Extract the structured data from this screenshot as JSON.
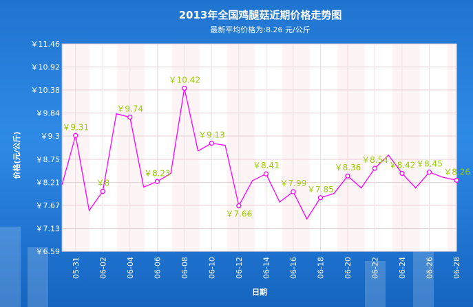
{
  "chart_data": {
    "type": "line",
    "title": "2013年全国鸡腿菇近期价格走势图",
    "subtitle": "最新平均价格为:8.26 元/公斤",
    "xlabel": "日期",
    "ylabel": "价格(元/公斤)",
    "ylim": [
      6.59,
      11.46
    ],
    "yticks": [
      "￥11.46",
      "￥10.92",
      "￥10.38",
      "￥9.84",
      "￥9.3",
      "￥8.75",
      "￥8.21",
      "￥7.67",
      "￥7.13",
      "￥6.59"
    ],
    "ytick_values": [
      11.46,
      10.92,
      10.38,
      9.84,
      9.3,
      8.75,
      8.21,
      7.67,
      7.13,
      6.59
    ],
    "xticks": [
      "05-31",
      "06-02",
      "06-04",
      "06-06",
      "06-08",
      "06-10",
      "06-12",
      "06-14",
      "06-16",
      "06-18",
      "06-20",
      "06-22",
      "06-24",
      "06-26",
      "06-28"
    ],
    "series": [
      {
        "color": "#ff00ff",
        "points": [
          {
            "x": "05-30",
            "y": 8.15
          },
          {
            "x": "05-31",
            "y": 9.31,
            "label": "￥9.31"
          },
          {
            "x": "06-01",
            "y": 7.55
          },
          {
            "x": "06-02",
            "y": 8.0,
            "label": "￥8"
          },
          {
            "x": "06-03",
            "y": 9.82
          },
          {
            "x": "06-04",
            "y": 9.74,
            "label": "￥9.74"
          },
          {
            "x": "06-05",
            "y": 8.1
          },
          {
            "x": "06-06",
            "y": 8.23,
            "label": "￥8.23"
          },
          {
            "x": "06-07",
            "y": 8.42
          },
          {
            "x": "06-08",
            "y": 10.42,
            "label": "￥10.42"
          },
          {
            "x": "06-09",
            "y": 8.95
          },
          {
            "x": "06-10",
            "y": 9.13,
            "label": "￥9.13"
          },
          {
            "x": "06-11",
            "y": 9.08
          },
          {
            "x": "06-12",
            "y": 7.66,
            "label": "￥7.66"
          },
          {
            "x": "06-13",
            "y": 8.25
          },
          {
            "x": "06-14",
            "y": 8.41,
            "label": "￥8.41"
          },
          {
            "x": "06-15",
            "y": 7.75
          },
          {
            "x": "06-16",
            "y": 7.99,
            "label": "￥7.99"
          },
          {
            "x": "06-17",
            "y": 7.35
          },
          {
            "x": "06-18",
            "y": 7.85,
            "label": "￥7.85"
          },
          {
            "x": "06-19",
            "y": 7.95
          },
          {
            "x": "06-20",
            "y": 8.36,
            "label": "￥8.36"
          },
          {
            "x": "06-21",
            "y": 8.08
          },
          {
            "x": "06-22",
            "y": 8.54,
            "label": "￥8.54"
          },
          {
            "x": "06-23",
            "y": 8.85
          },
          {
            "x": "06-24",
            "y": 8.42,
            "label": "￥8.42"
          },
          {
            "x": "06-25",
            "y": 8.08
          },
          {
            "x": "06-26",
            "y": 8.45,
            "label": "￥8.45"
          },
          {
            "x": "06-27",
            "y": 8.33
          },
          {
            "x": "06-28",
            "y": 8.26,
            "label": "￥8.26"
          }
        ]
      }
    ],
    "grid": true,
    "legend": "none"
  }
}
